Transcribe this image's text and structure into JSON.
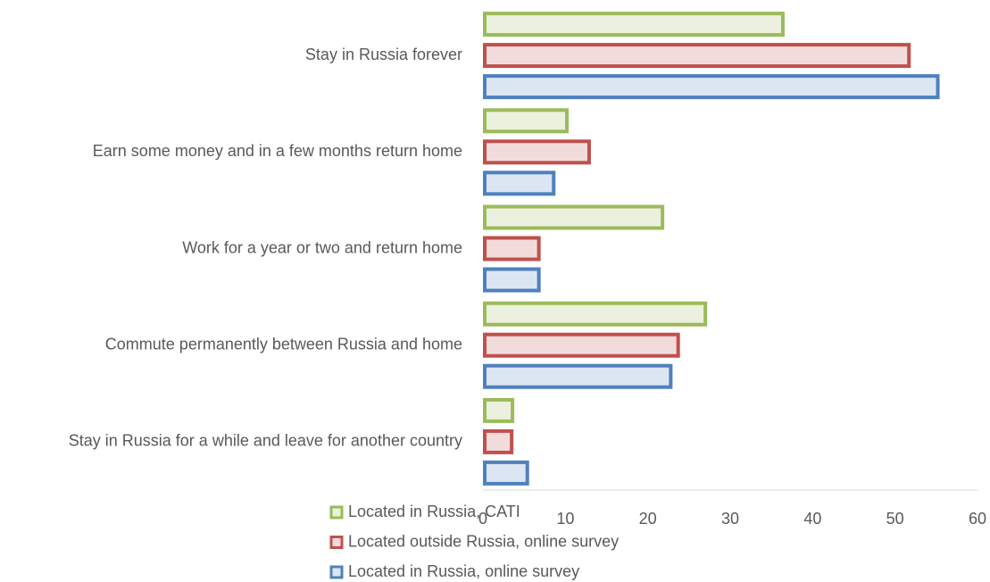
{
  "chart_data": {
    "type": "bar",
    "orientation": "horizontal",
    "categories": [
      "Stay in Russia forever",
      "Earn some money and in a few months return home",
      "Work for a year or two and return home",
      "Commute permanently between Russia and home",
      "Stay in Russia for a while and leave for another country"
    ],
    "series": [
      {
        "name": "Located in Russia, CATI",
        "color": "#9bbb59",
        "values": [
          36.6,
          10.4,
          22.0,
          27.2,
          3.8
        ]
      },
      {
        "name": "Located outside Russia, online survey",
        "color": "#c0504d",
        "values": [
          51.9,
          13.1,
          7.0,
          23.9,
          3.7
        ]
      },
      {
        "name": "Located in Russia, online survey",
        "color": "#4f81bd",
        "values": [
          55.4,
          8.8,
          7.0,
          23.0,
          5.6
        ]
      }
    ],
    "xlim": [
      0,
      60
    ],
    "xticks": [
      0,
      10,
      20,
      30,
      40,
      50,
      60
    ],
    "grid": false,
    "legend": "bottom-left"
  }
}
